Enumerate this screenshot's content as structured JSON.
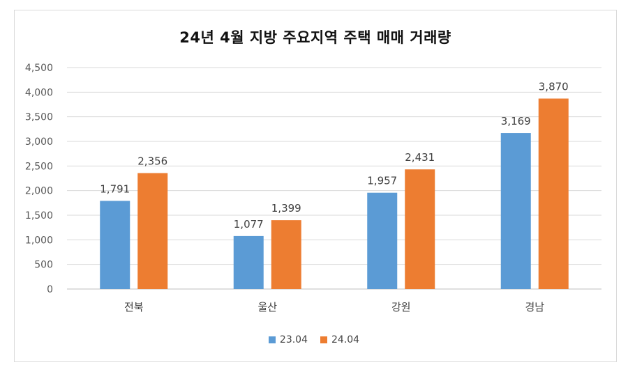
{
  "chart_data": {
    "type": "bar",
    "title": "24년 4월 지방 주요지역 주택 매매 거래량",
    "xlabel": "",
    "ylabel": "",
    "categories": [
      "전북",
      "울산",
      "강원",
      "경남"
    ],
    "series": [
      {
        "name": "23.04",
        "values": [
          1791,
          1077,
          1957,
          3169
        ],
        "labels": [
          "1,791",
          "1,077",
          "1,957",
          "3,169"
        ],
        "color": "#5b9bd5"
      },
      {
        "name": "24.04",
        "values": [
          2356,
          1399,
          2431,
          3870
        ],
        "labels": [
          "2,356",
          "1,399",
          "2,431",
          "3,870"
        ],
        "color": "#ed7d31"
      }
    ],
    "ylim": [
      0,
      4500
    ],
    "yticks": [
      0,
      500,
      1000,
      1500,
      2000,
      2500,
      3000,
      3500,
      4000,
      4500
    ],
    "ytick_labels": [
      "0",
      "500",
      "1,000",
      "1,500",
      "2,000",
      "2,500",
      "3,000",
      "3,500",
      "4,000",
      "4,500"
    ],
    "grid": true,
    "legend_position": "bottom"
  }
}
